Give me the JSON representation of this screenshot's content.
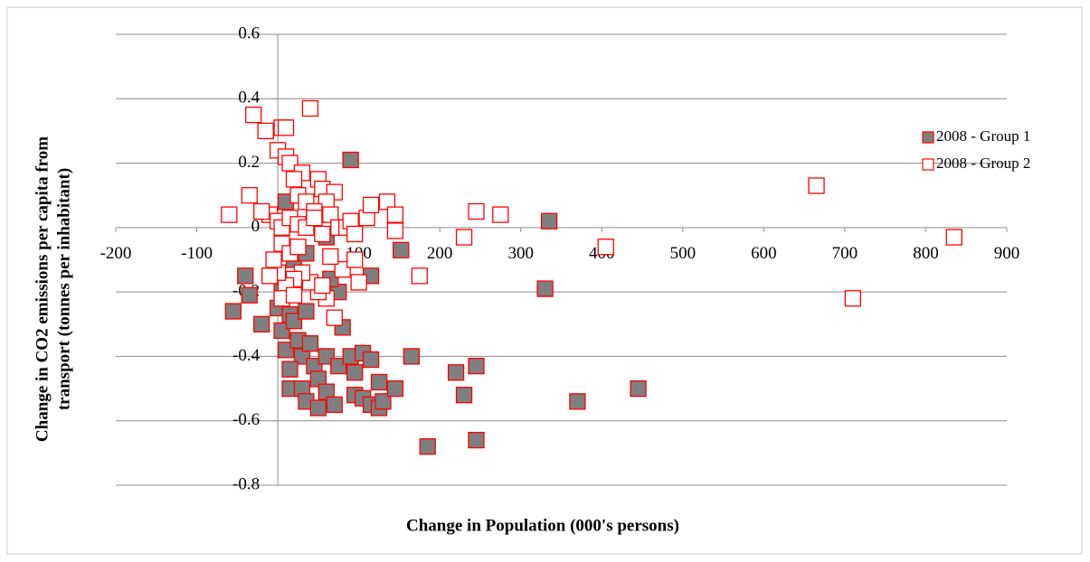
{
  "chart_data": {
    "type": "scatter",
    "x_label": "Change in Population (000's persons)",
    "y_label": [
      "Change in CO2 emissions per capita from",
      "transport (tonnes per inhabitant)"
    ],
    "xlim": [
      -200,
      900
    ],
    "xticks": [
      -200,
      -100,
      0,
      100,
      200,
      300,
      400,
      500,
      600,
      700,
      800,
      900
    ],
    "ylim": [
      -0.8,
      0.6
    ],
    "yticks": [
      -0.8,
      -0.6,
      -0.4,
      -0.2,
      0,
      0.2,
      0.4,
      0.6
    ],
    "grid": true,
    "legend": "right",
    "series": [
      {
        "name": "2008 - Group 1",
        "color": "#7f7f7f",
        "stroke": "#ff0000",
        "x": [
          90,
          335,
          152,
          10,
          -40,
          -35,
          -55,
          -20,
          0,
          5,
          15,
          20,
          10,
          25,
          30,
          40,
          35,
          45,
          50,
          15,
          15,
          30,
          35,
          50,
          60,
          70,
          60,
          75,
          75,
          65,
          80,
          90,
          95,
          95,
          105,
          105,
          115,
          115,
          125,
          125,
          130,
          145,
          165,
          115,
          185,
          220,
          230,
          245,
          245,
          330,
          370,
          445,
          60,
          20,
          35,
          5
        ],
        "values": [
          0.21,
          0.02,
          -0.07,
          0.08,
          -0.15,
          -0.21,
          -0.26,
          -0.3,
          -0.25,
          -0.32,
          -0.27,
          -0.29,
          -0.38,
          -0.35,
          -0.4,
          -0.36,
          -0.26,
          -0.43,
          -0.47,
          -0.44,
          -0.5,
          -0.5,
          -0.54,
          -0.56,
          -0.51,
          -0.55,
          -0.4,
          -0.43,
          -0.2,
          -0.16,
          -0.31,
          -0.4,
          -0.45,
          -0.52,
          -0.53,
          -0.39,
          -0.41,
          -0.55,
          -0.48,
          -0.56,
          -0.54,
          -0.5,
          -0.4,
          -0.15,
          -0.68,
          -0.45,
          -0.52,
          -0.43,
          -0.66,
          -0.19,
          -0.54,
          -0.5,
          -0.03,
          -0.1,
          -0.08,
          -0.2
        ]
      },
      {
        "name": "2008 - Group 2",
        "color": "#ffffff",
        "stroke": "#ff0000",
        "x": [
          -60,
          -35,
          -30,
          -15,
          0,
          5,
          10,
          10,
          15,
          40,
          30,
          20,
          50,
          55,
          70,
          60,
          25,
          35,
          45,
          -10,
          0,
          5,
          15,
          25,
          35,
          45,
          55,
          65,
          75,
          85,
          90,
          95,
          110,
          115,
          135,
          145,
          145,
          230,
          245,
          275,
          405,
          665,
          835,
          710,
          175,
          100,
          80,
          70,
          60,
          50,
          40,
          30,
          20,
          10,
          0,
          -5,
          5,
          15,
          25,
          -10,
          5,
          20,
          55,
          65,
          95,
          -20
        ],
        "values": [
          0.04,
          0.1,
          0.35,
          0.3,
          0.24,
          0.31,
          0.31,
          0.22,
          0.2,
          0.37,
          0.17,
          0.15,
          0.15,
          0.12,
          0.11,
          0.08,
          0.1,
          0.08,
          0.05,
          0.04,
          0.02,
          0.0,
          0.03,
          0.01,
          0.0,
          0.03,
          -0.02,
          0.04,
          0.0,
          0.0,
          0.02,
          -0.02,
          0.03,
          0.07,
          0.08,
          0.04,
          -0.01,
          -0.03,
          0.05,
          0.04,
          -0.06,
          0.13,
          -0.03,
          -0.22,
          -0.15,
          -0.17,
          -0.13,
          -0.28,
          -0.22,
          -0.2,
          -0.17,
          -0.14,
          -0.16,
          -0.18,
          -0.14,
          -0.1,
          -0.05,
          -0.08,
          -0.06,
          -0.15,
          -0.22,
          -0.21,
          -0.18,
          -0.09,
          -0.1,
          0.05
        ]
      }
    ]
  }
}
